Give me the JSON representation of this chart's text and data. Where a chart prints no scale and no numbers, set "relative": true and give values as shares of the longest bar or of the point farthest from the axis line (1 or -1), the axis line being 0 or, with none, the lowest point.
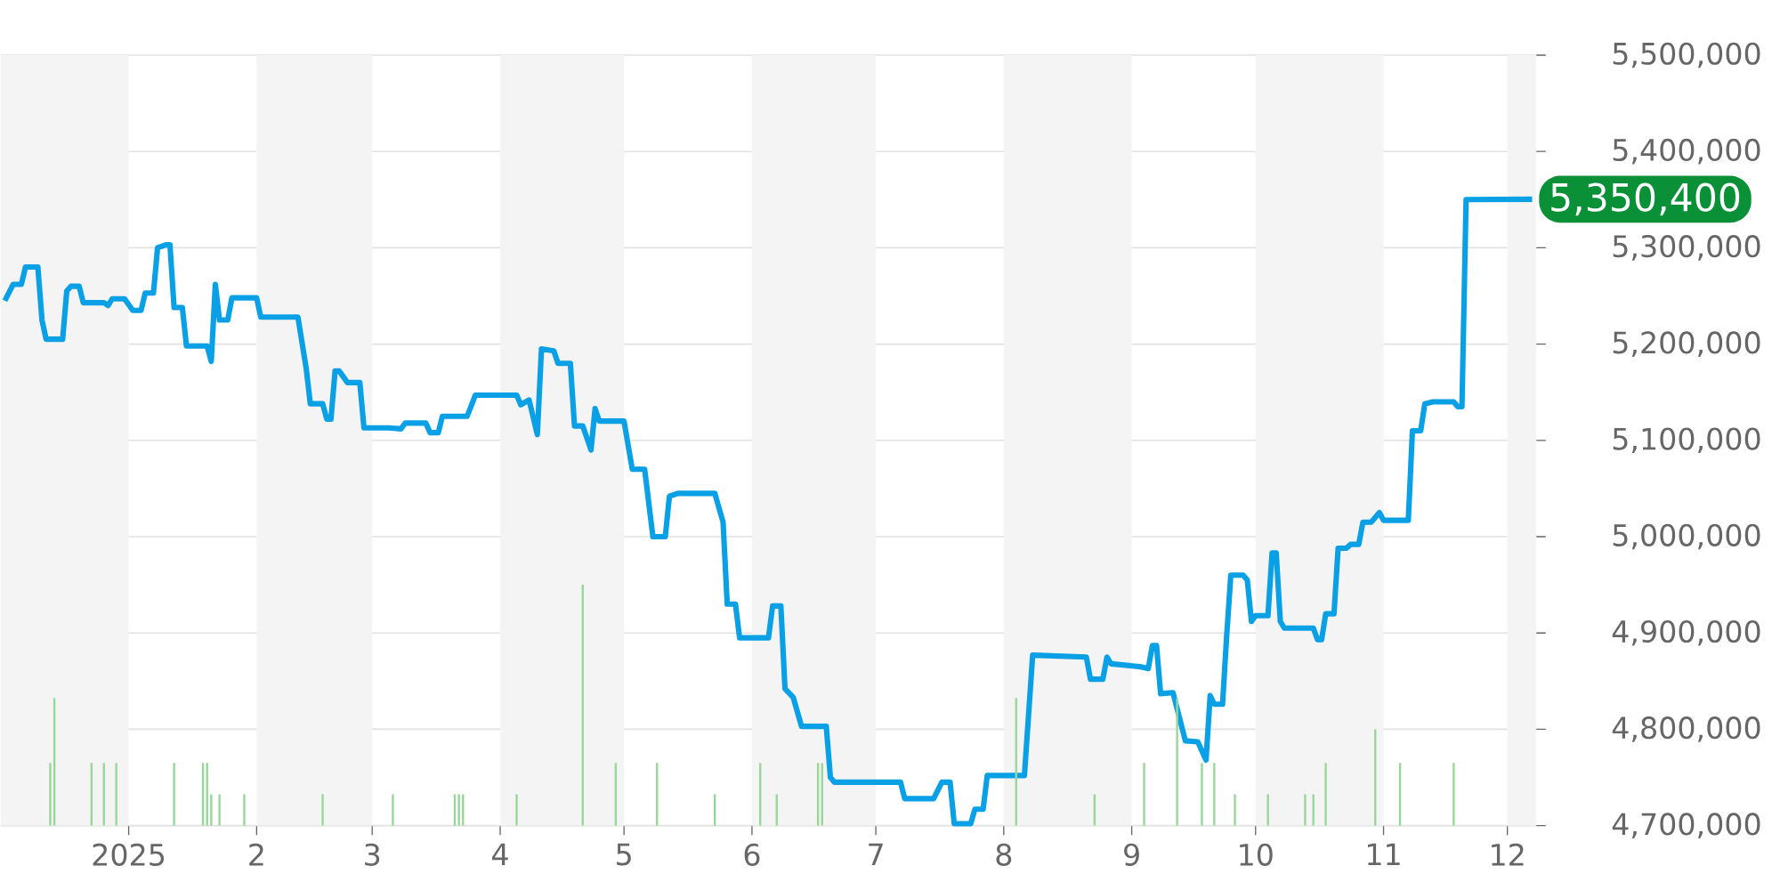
{
  "chart_data": [
    {
      "type": "line",
      "xlim": [
        "2024-12-01",
        "2025-12-08"
      ],
      "ylim": [
        4700000,
        5500000
      ],
      "xticks": [
        {
          "value": "2025-01-01",
          "label": "2025"
        },
        {
          "value": "2025-02-01",
          "label": "2"
        },
        {
          "value": "2025-03-01",
          "label": "3"
        },
        {
          "value": "2025-04-01",
          "label": "4"
        },
        {
          "value": "2025-05-01",
          "label": "5"
        },
        {
          "value": "2025-06-01",
          "label": "6"
        },
        {
          "value": "2025-07-01",
          "label": "7"
        },
        {
          "value": "2025-08-01",
          "label": "8"
        },
        {
          "value": "2025-09-01",
          "label": "9"
        },
        {
          "value": "2025-10-01",
          "label": "10"
        },
        {
          "value": "2025-11-01",
          "label": "11"
        },
        {
          "value": "2025-12-01",
          "label": "12"
        }
      ],
      "yticks": [
        {
          "value": 4700000,
          "label": "4,700,000"
        },
        {
          "value": 4800000,
          "label": "4,800,000"
        },
        {
          "value": 4900000,
          "label": "4,900,000"
        },
        {
          "value": 5000000,
          "label": "5,000,000"
        },
        {
          "value": 5100000,
          "label": "5,100,000"
        },
        {
          "value": 5200000,
          "label": "5,200,000"
        },
        {
          "value": 5300000,
          "label": "5,300,000"
        },
        {
          "value": 5400000,
          "label": "5,400,000"
        },
        {
          "value": 5500000,
          "label": "5,500,000"
        }
      ],
      "grid": "y",
      "bands": [
        {
          "axis": "x",
          "from": "2024-12-01",
          "to": "2025-01-01",
          "color": "#f4f4f4"
        },
        {
          "axis": "x",
          "from": "2025-02-01",
          "to": "2025-03-01",
          "color": "#f4f4f4"
        },
        {
          "axis": "x",
          "from": "2025-04-01",
          "to": "2025-05-01",
          "color": "#f4f4f4"
        },
        {
          "axis": "x",
          "from": "2025-06-01",
          "to": "2025-07-01",
          "color": "#f4f4f4"
        },
        {
          "axis": "x",
          "from": "2025-08-01",
          "to": "2025-09-01",
          "color": "#f4f4f4"
        },
        {
          "axis": "x",
          "from": "2025-10-01",
          "to": "2025-11-01",
          "color": "#f4f4f4"
        },
        {
          "axis": "x",
          "from": "2025-12-01",
          "to": "2025-12-08",
          "color": "#f4f4f4"
        }
      ],
      "annotations": [
        {
          "text": "5,350,400",
          "x": "2025-12-07",
          "y": 5350400
        }
      ],
      "series": [
        {
          "color": "#0aa0e6",
          "x": [
            "2024-12-02",
            "2024-12-04",
            "2024-12-06",
            "2024-12-07",
            "2024-12-10",
            "2024-12-11",
            "2024-12-12",
            "2024-12-16",
            "2024-12-17",
            "2024-12-18",
            "2024-12-20",
            "2024-12-21",
            "2024-12-26",
            "2024-12-27",
            "2024-12-28",
            "2024-12-31",
            "2025-01-02",
            "2025-01-04",
            "2025-01-05",
            "2025-01-07",
            "2025-01-08",
            "2025-01-10",
            "2025-01-11",
            "2025-01-12",
            "2025-01-14",
            "2025-01-15",
            "2025-01-20",
            "2025-01-21",
            "2025-01-22",
            "2025-01-23",
            "2025-01-25",
            "2025-01-26",
            "2025-02-01",
            "2025-02-02",
            "2025-02-11",
            "2025-02-13",
            "2025-02-14",
            "2025-02-17",
            "2025-02-18",
            "2025-02-19",
            "2025-02-20",
            "2025-02-21",
            "2025-02-23",
            "2025-02-26",
            "2025-02-27",
            "2025-03-05",
            "2025-03-08",
            "2025-03-09",
            "2025-03-14",
            "2025-03-15",
            "2025-03-17",
            "2025-03-18",
            "2025-03-24",
            "2025-03-26",
            "2025-04-05",
            "2025-04-06",
            "2025-04-08",
            "2025-04-10",
            "2025-04-11",
            "2025-04-14",
            "2025-04-15",
            "2025-04-18",
            "2025-04-19",
            "2025-04-21",
            "2025-04-23",
            "2025-04-24",
            "2025-04-25",
            "2025-05-01",
            "2025-05-03",
            "2025-05-06",
            "2025-05-08",
            "2025-05-11",
            "2025-05-12",
            "2025-05-14",
            "2025-05-23",
            "2025-05-25",
            "2025-05-26",
            "2025-05-28",
            "2025-05-29",
            "2025-06-05",
            "2025-06-06",
            "2025-06-08",
            "2025-06-09",
            "2025-06-11",
            "2025-06-13",
            "2025-06-19",
            "2025-06-20",
            "2025-06-21",
            "2025-07-07",
            "2025-07-08",
            "2025-07-15",
            "2025-07-17",
            "2025-07-19",
            "2025-07-20",
            "2025-07-24",
            "2025-07-25",
            "2025-07-27",
            "2025-07-28",
            "2025-08-06",
            "2025-08-08",
            "2025-08-21",
            "2025-08-22",
            "2025-08-25",
            "2025-08-26",
            "2025-08-27",
            "2025-09-03",
            "2025-09-05",
            "2025-09-06",
            "2025-09-07",
            "2025-09-08",
            "2025-09-11",
            "2025-09-14",
            "2025-09-17",
            "2025-09-19",
            "2025-09-20",
            "2025-09-21",
            "2025-09-23",
            "2025-09-24",
            "2025-09-25",
            "2025-09-28",
            "2025-09-29",
            "2025-09-30",
            "2025-10-01",
            "2025-10-04",
            "2025-10-05",
            "2025-10-06",
            "2025-10-07",
            "2025-10-08",
            "2025-10-15",
            "2025-10-16",
            "2025-10-17",
            "2025-10-18",
            "2025-10-20",
            "2025-10-21",
            "2025-10-23",
            "2025-10-24",
            "2025-10-26",
            "2025-10-27",
            "2025-10-29",
            "2025-10-31",
            "2025-11-01",
            "2025-11-07",
            "2025-11-08",
            "2025-11-10",
            "2025-11-11",
            "2025-11-13",
            "2025-11-18",
            "2025-11-19",
            "2025-11-20",
            "2025-11-21",
            "2025-12-07"
          ],
          "values": [
            5245000,
            5262000,
            5262000,
            5280000,
            5280000,
            5225000,
            5205000,
            5205000,
            5255000,
            5260000,
            5260000,
            5243000,
            5243000,
            5240000,
            5247000,
            5247000,
            5235000,
            5235000,
            5253000,
            5253000,
            5300000,
            5303000,
            5303000,
            5238000,
            5238000,
            5198000,
            5198000,
            5182000,
            5262000,
            5225000,
            5225000,
            5248000,
            5248000,
            5228000,
            5228000,
            5175000,
            5138000,
            5138000,
            5122000,
            5122000,
            5172000,
            5172000,
            5160000,
            5160000,
            5113000,
            5113000,
            5112000,
            5118000,
            5118000,
            5108000,
            5108000,
            5125000,
            5125000,
            5147000,
            5147000,
            5137000,
            5142000,
            5106000,
            5195000,
            5193000,
            5180000,
            5180000,
            5115000,
            5115000,
            5090000,
            5133000,
            5120000,
            5120000,
            5070000,
            5070000,
            5000000,
            5000000,
            5042000,
            5045000,
            5045000,
            5015000,
            4930000,
            4930000,
            4895000,
            4895000,
            4928000,
            4928000,
            4842000,
            4833000,
            4803000,
            4803000,
            4750000,
            4745000,
            4745000,
            4728000,
            4728000,
            4745000,
            4745000,
            4702000,
            4702000,
            4717000,
            4717000,
            4752000,
            4752000,
            4877000,
            4875000,
            4852000,
            4852000,
            4875000,
            4868000,
            4865000,
            4863000,
            4887000,
            4887000,
            4837000,
            4838000,
            4788000,
            4787000,
            4768000,
            4835000,
            4826000,
            4826000,
            4897000,
            4960000,
            4960000,
            4955000,
            4912000,
            4918000,
            4918000,
            4983000,
            4983000,
            4912000,
            4905000,
            4905000,
            4893000,
            4893000,
            4920000,
            4920000,
            4988000,
            4988000,
            4992000,
            4992000,
            5015000,
            5015000,
            5025000,
            5017000,
            5017000,
            5110000,
            5110000,
            5138000,
            5140000,
            5140000,
            5135000,
            5135000,
            5350000,
            5350400
          ]
        }
      ]
    },
    {
      "type": "bar",
      "relative": true,
      "xlim": [
        "2024-12-01",
        "2025-12-08"
      ],
      "series": [
        {
          "color": "#99d699",
          "x": [
            "2024-12-13",
            "2024-12-14",
            "2024-12-23",
            "2024-12-26",
            "2024-12-29",
            "2025-01-12",
            "2025-01-19",
            "2025-01-20",
            "2025-01-21",
            "2025-01-23",
            "2025-01-29",
            "2025-02-17",
            "2025-03-06",
            "2025-03-21",
            "2025-03-22",
            "2025-03-23",
            "2025-04-05",
            "2025-04-21",
            "2025-04-29",
            "2025-05-09",
            "2025-05-23",
            "2025-06-03",
            "2025-06-07",
            "2025-06-17",
            "2025-06-18",
            "2025-08-04",
            "2025-08-23",
            "2025-09-04",
            "2025-09-12",
            "2025-09-18",
            "2025-09-21",
            "2025-09-26",
            "2025-10-04",
            "2025-10-13",
            "2025-10-15",
            "2025-10-18",
            "2025-10-30",
            "2025-11-05",
            "2025-11-18"
          ],
          "values": [
            0.26,
            0.53,
            0.26,
            0.26,
            0.26,
            0.26,
            0.26,
            0.26,
            0.13,
            0.13,
            0.13,
            0.13,
            0.13,
            0.13,
            0.13,
            0.13,
            0.13,
            1,
            0.26,
            0.26,
            0.13,
            0.26,
            0.13,
            0.26,
            0.26,
            0.53,
            0.13,
            0.26,
            0.53,
            0.26,
            0.26,
            0.13,
            0.13,
            0.13,
            0.13,
            0.26,
            0.4,
            0.26,
            0.26
          ]
        }
      ]
    }
  ]
}
